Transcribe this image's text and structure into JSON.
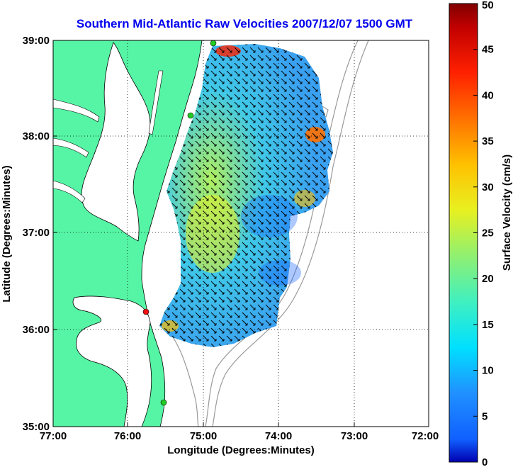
{
  "title": "Southern Mid-Atlantic Raw Velocities 2007/12/07 1500 GMT",
  "axes": {
    "xlabel": "Longitude (Degrees:Minutes)",
    "ylabel": "Latitude (Degrees:Minutes)",
    "x_ticks": [
      "77:00",
      "76:00",
      "75:00",
      "74:00",
      "73:00",
      "72:00"
    ],
    "y_ticks": [
      "39:00",
      "38:00",
      "37:00",
      "36:00",
      "35:00"
    ],
    "grid": "dotted"
  },
  "colorbar": {
    "label": "Surface Velocity (cm/s)",
    "ticks": [
      "0",
      "5",
      "10",
      "15",
      "20",
      "25",
      "30",
      "35",
      "40",
      "45",
      "50"
    ],
    "range": [
      0,
      50
    ]
  },
  "colors": {
    "land": "#55f5a5",
    "coast": "#000000",
    "contours": "#999999",
    "title": "#0000ee"
  },
  "stations": [
    {
      "color": "green"
    },
    {
      "color": "green"
    },
    {
      "color": "red"
    },
    {
      "color": "green"
    }
  ]
}
